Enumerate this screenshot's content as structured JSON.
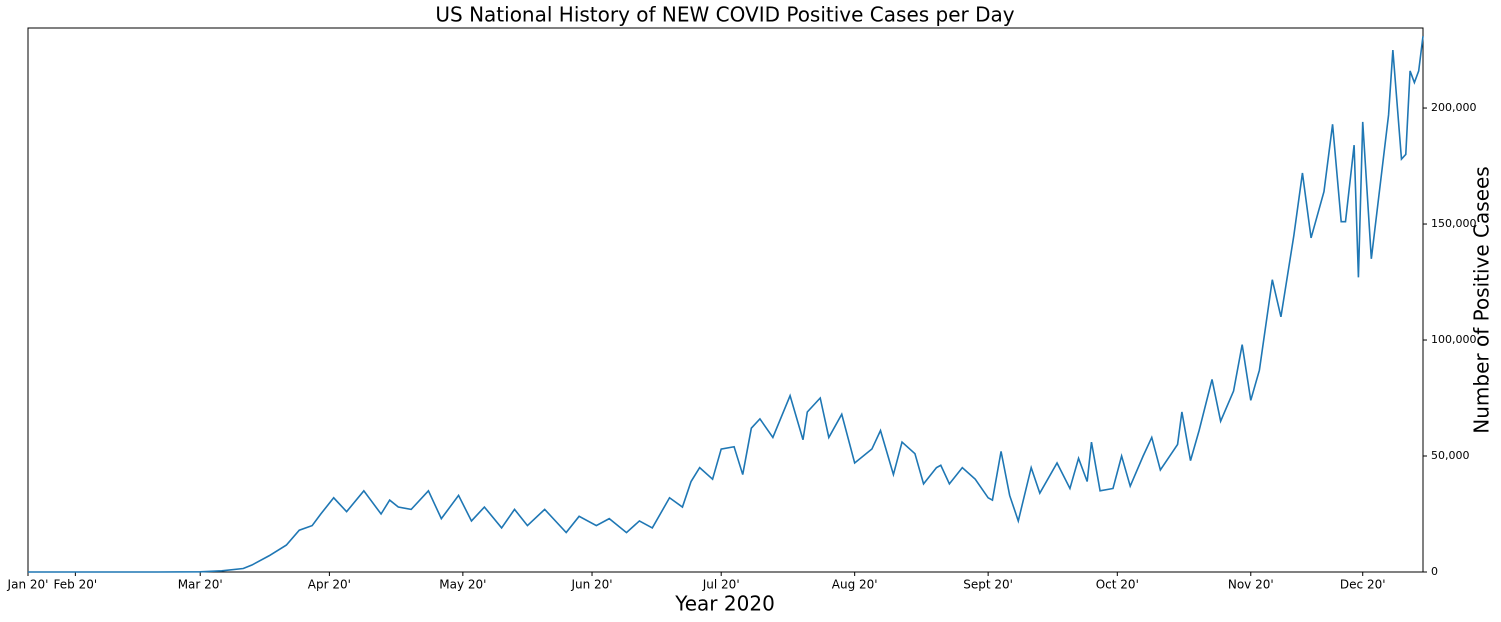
{
  "chart_data": {
    "type": "line",
    "title": "US National History of NEW COVID Positive Cases per Day",
    "x_label": "Year 2020",
    "y_label": "Number of Positive Casees",
    "x": [
      0,
      10,
      20,
      30,
      40,
      45,
      50,
      52,
      56,
      60,
      63,
      66,
      68,
      71,
      74,
      78,
      82,
      84,
      86,
      89,
      93,
      96,
      100,
      103,
      106,
      110,
      113,
      116,
      120,
      125,
      128,
      132,
      135,
      139,
      142,
      145,
      149,
      152,
      154,
      156,
      159,
      161,
      164,
      166,
      168,
      170,
      173,
      177,
      180,
      181,
      184,
      186,
      189,
      192,
      196,
      198,
      201,
      203,
      206,
      208,
      211,
      212,
      214,
      217,
      220,
      223,
      224,
      226,
      228,
      230,
      233,
      235,
      239,
      242,
      244,
      246,
      247,
      249,
      252,
      254,
      256,
      259,
      261,
      263,
      267,
      268,
      270,
      272,
      275,
      277,
      280,
      282,
      284,
      286,
      289,
      291,
      294,
      296,
      298,
      301,
      303,
      305,
      306,
      308,
      309,
      310,
      312,
      316,
      317,
      319,
      320,
      321,
      322,
      323,
      324
    ],
    "series": [
      {
        "name": "New cases",
        "color": "#1f77b4",
        "values": [
          0,
          0,
          0,
          0,
          100,
          500,
          1500,
          3000,
          7000,
          11600,
          18000,
          20000,
          25000,
          32000,
          26000,
          35000,
          25000,
          31000,
          28000,
          27000,
          35000,
          23000,
          33000,
          22000,
          28000,
          19000,
          27000,
          20000,
          27000,
          17000,
          24000,
          20000,
          23000,
          17000,
          22000,
          19000,
          32000,
          28000,
          39000,
          45000,
          40000,
          53000,
          54000,
          42000,
          62000,
          66000,
          58000,
          76000,
          57000,
          69000,
          75000,
          58000,
          68000,
          47000,
          53000,
          61000,
          42000,
          56000,
          51000,
          38000,
          45000,
          46000,
          38000,
          45000,
          40000,
          32000,
          31000,
          52000,
          33000,
          22000,
          45000,
          34000,
          47000,
          36000,
          49000,
          39000,
          56000,
          35000,
          36000,
          50000,
          37000,
          50000,
          58000,
          44000,
          55000,
          69000,
          48000,
          61000,
          83000,
          65000,
          78000,
          98000,
          74000,
          87000,
          126000,
          110000,
          145000,
          172000,
          144000,
          164000,
          193000,
          151000,
          151000,
          184000,
          127000,
          194000,
          135000,
          197000,
          225000,
          178000,
          180000,
          216000,
          211000,
          216000,
          231000
        ]
      }
    ],
    "xlim": [
      0,
      324
    ],
    "xticks": [
      {
        "value": 0,
        "label": "Jan 20'"
      },
      {
        "value": 11,
        "label": "Feb 20'"
      },
      {
        "value": 40,
        "label": "Mar 20'"
      },
      {
        "value": 70,
        "label": "Apr 20'"
      },
      {
        "value": 101,
        "label": "May 20'"
      },
      {
        "value": 131,
        "label": "Jun 20'"
      },
      {
        "value": 161,
        "label": "Jul 20'"
      },
      {
        "value": 192,
        "label": "Aug 20'"
      },
      {
        "value": 223,
        "label": "Sept 20'"
      },
      {
        "value": 253,
        "label": "Oct 20'"
      },
      {
        "value": 284,
        "label": "Nov 20'"
      },
      {
        "value": 310,
        "label": "Dec 20'"
      }
    ],
    "ylim": [
      0,
      234500
    ],
    "yticks": [
      0,
      {
        "value": 50000,
        "label": "50,000"
      },
      {
        "value": 100000,
        "label": "100,000"
      },
      {
        "value": 150000,
        "label": "150,000"
      },
      {
        "value": 200000,
        "label": "200,000"
      }
    ],
    "y_axis_side": "right",
    "grid": false
  }
}
